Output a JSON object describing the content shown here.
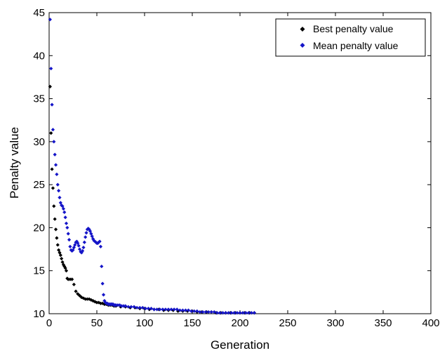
{
  "chart_data": {
    "type": "scatter",
    "xlabel": "Generation",
    "ylabel": "Penalty value",
    "xlim": [
      0,
      400
    ],
    "ylim": [
      10,
      45
    ],
    "xticks": [
      0,
      50,
      100,
      150,
      200,
      250,
      300,
      350,
      400
    ],
    "yticks": [
      10,
      15,
      20,
      25,
      30,
      35,
      40,
      45
    ],
    "grid": false,
    "legend_position": "top-right",
    "series": [
      {
        "name": "Best penalty value",
        "color": "#000000",
        "x": [
          1,
          2,
          3,
          4,
          5,
          6,
          7,
          8,
          9,
          10,
          11,
          12,
          13,
          14,
          15,
          16,
          17,
          18,
          19,
          20,
          22,
          24,
          26,
          28,
          30,
          32,
          34,
          36,
          38,
          40,
          42,
          44,
          46,
          48,
          50,
          52,
          54,
          56,
          58,
          60,
          62,
          64,
          66,
          68,
          70,
          75,
          80,
          85,
          90,
          95,
          100,
          105,
          110,
          115,
          120,
          125,
          130,
          135,
          140,
          145,
          150,
          155,
          160,
          165,
          170,
          175,
          180,
          185,
          190,
          195,
          200,
          205,
          210,
          215
        ],
        "y": [
          36.4,
          31,
          26.8,
          24.6,
          22.5,
          21,
          19.8,
          18.8,
          18,
          17.4,
          17.1,
          16.8,
          16.4,
          16,
          15.7,
          15.5,
          15.3,
          15,
          14.1,
          14,
          14,
          14,
          13.4,
          12.6,
          12.3,
          12.1,
          11.9,
          11.8,
          11.7,
          11.7,
          11.7,
          11.6,
          11.5,
          11.4,
          11.3,
          11.3,
          11.2,
          11.2,
          11.1,
          11.1,
          11,
          11,
          11,
          10.9,
          10.9,
          10.8,
          10.8,
          10.7,
          10.7,
          10.6,
          10.6,
          10.5,
          10.5,
          10.5,
          10.4,
          10.4,
          10.4,
          10.3,
          10.3,
          10.3,
          10.3,
          10.2,
          10.2,
          10.2,
          10.2,
          10.1,
          10.1,
          10.1,
          10.1,
          10.1,
          10.1,
          10.1,
          10.1,
          10.1
        ]
      },
      {
        "name": "Mean penalty value",
        "color": "#1515c8",
        "x": [
          1,
          2,
          3,
          4,
          5,
          6,
          7,
          8,
          9,
          10,
          11,
          12,
          13,
          14,
          15,
          16,
          17,
          18,
          19,
          20,
          21,
          22,
          23,
          24,
          25,
          26,
          27,
          28,
          29,
          30,
          31,
          32,
          33,
          34,
          35,
          36,
          37,
          38,
          39,
          40,
          41,
          42,
          43,
          44,
          45,
          46,
          47,
          48,
          49,
          50,
          51,
          52,
          53,
          54,
          55,
          56,
          57,
          58,
          59,
          60,
          61,
          62,
          63,
          64,
          65,
          66,
          67,
          68,
          69,
          70,
          72,
          74,
          76,
          78,
          80,
          83,
          86,
          89,
          92,
          95,
          98,
          101,
          104,
          107,
          110,
          113,
          116,
          119,
          122,
          125,
          128,
          131,
          134,
          137,
          140,
          143,
          146,
          149,
          152,
          155,
          158,
          161,
          164,
          167,
          170,
          173,
          176,
          179,
          182,
          185,
          188,
          191,
          194,
          197,
          200,
          203,
          206,
          209,
          212,
          215
        ],
        "y": [
          44.2,
          38.5,
          34.3,
          31.4,
          30,
          28.5,
          27.3,
          26.2,
          25,
          24.3,
          23.5,
          22.9,
          22.6,
          22.5,
          22.2,
          21.8,
          21.2,
          20.5,
          20,
          19.3,
          18.6,
          17.8,
          17.4,
          17.3,
          17.4,
          17.7,
          18,
          18.3,
          18.4,
          18.2,
          17.9,
          17.5,
          17.2,
          17.1,
          17.3,
          17.7,
          18.3,
          18.9,
          19.4,
          19.8,
          19.9,
          19.8,
          19.6,
          19.3,
          19,
          18.7,
          18.5,
          18.4,
          18.3,
          18.2,
          18.2,
          18.3,
          18.4,
          17.8,
          15.5,
          13.5,
          12.2,
          11.5,
          11.3,
          11.2,
          11.2,
          11.1,
          11.1,
          11.1,
          11.1,
          11.1,
          11.1,
          11,
          11,
          11,
          11,
          11,
          10.9,
          10.9,
          10.9,
          10.8,
          10.8,
          10.8,
          10.7,
          10.7,
          10.7,
          10.6,
          10.6,
          10.6,
          10.5,
          10.5,
          10.5,
          10.5,
          10.5,
          10.5,
          10.5,
          10.5,
          10.5,
          10.4,
          10.4,
          10.4,
          10.4,
          10.3,
          10.3,
          10.3,
          10.2,
          10.2,
          10.2,
          10.2,
          10.2,
          10.2,
          10.1,
          10.1,
          10.1,
          10.1,
          10.1,
          10.1,
          10.1,
          10.1,
          10.1,
          10.1,
          10.1,
          10.1,
          10.1,
          10.1
        ]
      }
    ]
  }
}
